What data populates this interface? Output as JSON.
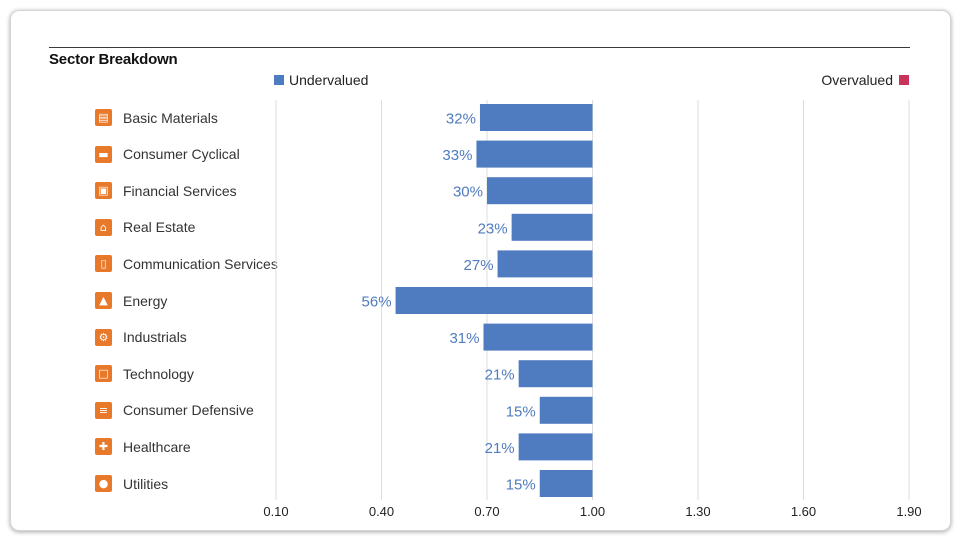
{
  "title": "Sector Breakdown",
  "legend": {
    "undervalued": "Undervalued",
    "overvalued": "Overvalued"
  },
  "colors": {
    "undervalued": "#4f7cc0",
    "overvalued": "#c8335a",
    "icon": "#e8792b",
    "grid": "#dcdcdc",
    "label": "#4f7cc0"
  },
  "chart_data": {
    "type": "bar",
    "orientation": "horizontal",
    "title": "Sector Breakdown",
    "xlabel": "",
    "ylabel": "",
    "baseline": 1.0,
    "xlim": [
      0.1,
      1.9
    ],
    "xticks": [
      "0.10",
      "0.40",
      "0.70",
      "1.00",
      "1.30",
      "1.60",
      "1.90"
    ],
    "grid": true,
    "legend_placement": "top",
    "categories": [
      "Basic Materials",
      "Consumer Cyclical",
      "Financial Services",
      "Real Estate",
      "Communication Services",
      "Energy",
      "Industrials",
      "Technology",
      "Consumer Defensive",
      "Healthcare",
      "Utilities"
    ],
    "icons": [
      "blocks-icon",
      "car-icon",
      "wallet-icon",
      "house-icon",
      "phone-icon",
      "flame-icon",
      "gear-icon",
      "monitor-icon",
      "cart-icon",
      "cross-icon",
      "lightbulb-icon"
    ],
    "values": [
      0.68,
      0.67,
      0.7,
      0.77,
      0.73,
      0.44,
      0.69,
      0.79,
      0.85,
      0.79,
      0.85
    ],
    "labels": [
      "32%",
      "33%",
      "30%",
      "23%",
      "27%",
      "56%",
      "31%",
      "21%",
      "15%",
      "21%",
      "15%"
    ]
  }
}
